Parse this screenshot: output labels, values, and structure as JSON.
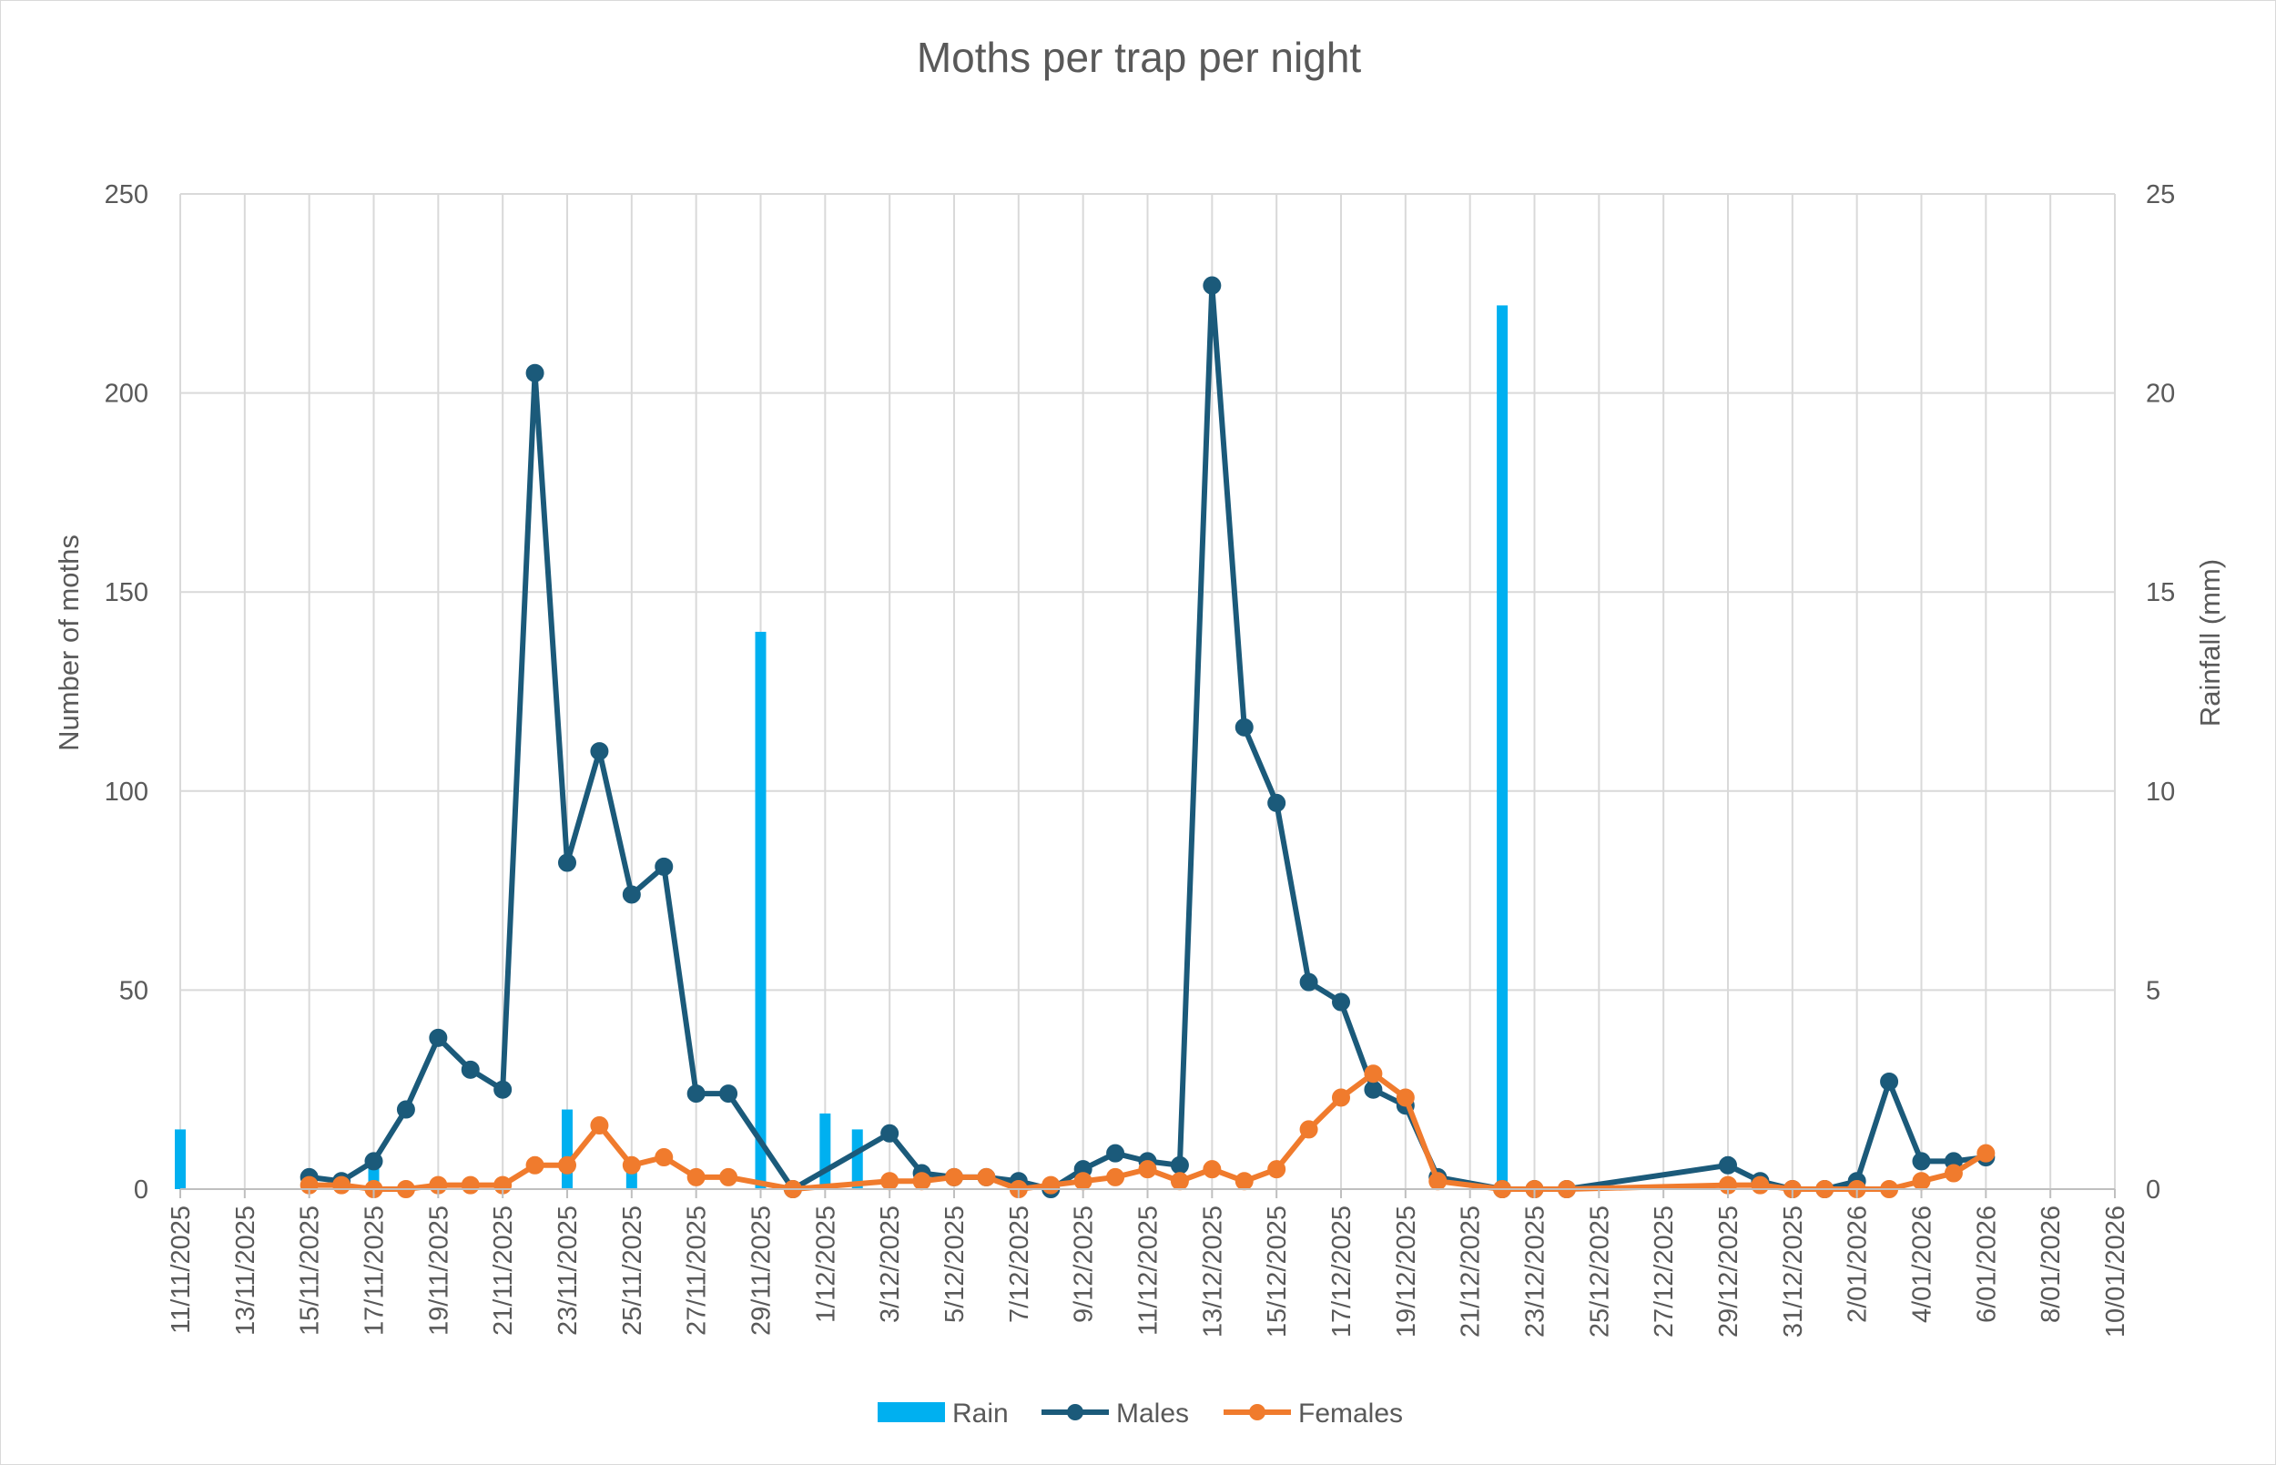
{
  "chart_data": {
    "type": "line",
    "title": "Moths per trap per night",
    "ylabel": "Number of moths",
    "y2label": "Rainfall (mm)",
    "xlabel": "",
    "x_axis": {
      "start": "11/11/2025",
      "end": "10/01/2026",
      "tick_interval_days": 2,
      "tick_labels": [
        "11/11/2025",
        "13/11/2025",
        "15/11/2025",
        "17/11/2025",
        "19/11/2025",
        "21/11/2025",
        "23/11/2025",
        "25/11/2025",
        "27/11/2025",
        "29/11/2025",
        "1/12/2025",
        "3/12/2025",
        "5/12/2025",
        "7/12/2025",
        "9/12/2025",
        "11/12/2025",
        "13/12/2025",
        "15/12/2025",
        "17/12/2025",
        "19/12/2025",
        "21/12/2025",
        "23/12/2025",
        "25/12/2025",
        "27/12/2025",
        "29/12/2025",
        "31/12/2025",
        "2/01/2026",
        "4/01/2026",
        "6/01/2026",
        "8/01/2026",
        "10/01/2026"
      ]
    },
    "ylim": [
      0,
      250
    ],
    "y_ticks": [
      0,
      50,
      100,
      150,
      200,
      250
    ],
    "y2lim": [
      0,
      25
    ],
    "y2_ticks": [
      0,
      5,
      10,
      15,
      20,
      25
    ],
    "grid": true,
    "legend_position": "bottom",
    "series": [
      {
        "name": "Rain",
        "type": "bar",
        "axis": "right",
        "color": "#00b0f0",
        "points": [
          {
            "x": "11/11/2025",
            "y": 1.5
          },
          {
            "x": "17/11/2025",
            "y": 0.6
          },
          {
            "x": "23/11/2025",
            "y": 2.0
          },
          {
            "x": "25/11/2025",
            "y": 0.6
          },
          {
            "x": "29/11/2025",
            "y": 14.0
          },
          {
            "x": "1/12/2025",
            "y": 1.9
          },
          {
            "x": "2/12/2025",
            "y": 1.5
          },
          {
            "x": "22/12/2025",
            "y": 22.2
          }
        ]
      },
      {
        "name": "Males",
        "type": "line",
        "axis": "left",
        "color": "#1b5a7a",
        "points": [
          {
            "x": "15/11/2025",
            "y": 3
          },
          {
            "x": "16/11/2025",
            "y": 2
          },
          {
            "x": "17/11/2025",
            "y": 7
          },
          {
            "x": "18/11/2025",
            "y": 20
          },
          {
            "x": "19/11/2025",
            "y": 38
          },
          {
            "x": "20/11/2025",
            "y": 30
          },
          {
            "x": "21/11/2025",
            "y": 25
          },
          {
            "x": "22/11/2025",
            "y": 205
          },
          {
            "x": "23/11/2025",
            "y": 82
          },
          {
            "x": "24/11/2025",
            "y": 110
          },
          {
            "x": "25/11/2025",
            "y": 74
          },
          {
            "x": "26/11/2025",
            "y": 81
          },
          {
            "x": "27/11/2025",
            "y": 24
          },
          {
            "x": "28/11/2025",
            "y": 24
          },
          {
            "x": "30/11/2025",
            "y": 0
          },
          {
            "x": "3/12/2025",
            "y": 14
          },
          {
            "x": "4/12/2025",
            "y": 4
          },
          {
            "x": "5/12/2025",
            "y": 3
          },
          {
            "x": "6/12/2025",
            "y": 3
          },
          {
            "x": "7/12/2025",
            "y": 2
          },
          {
            "x": "8/12/2025",
            "y": 0
          },
          {
            "x": "9/12/2025",
            "y": 5
          },
          {
            "x": "10/12/2025",
            "y": 9
          },
          {
            "x": "11/12/2025",
            "y": 7
          },
          {
            "x": "12/12/2025",
            "y": 6
          },
          {
            "x": "13/12/2025",
            "y": 227
          },
          {
            "x": "14/12/2025",
            "y": 116
          },
          {
            "x": "15/12/2025",
            "y": 97
          },
          {
            "x": "16/12/2025",
            "y": 52
          },
          {
            "x": "17/12/2025",
            "y": 47
          },
          {
            "x": "18/12/2025",
            "y": 25
          },
          {
            "x": "19/12/2025",
            "y": 21
          },
          {
            "x": "20/12/2025",
            "y": 3
          },
          {
            "x": "22/12/2025",
            "y": 0
          },
          {
            "x": "23/12/2025",
            "y": 0
          },
          {
            "x": "24/12/2025",
            "y": 0
          },
          {
            "x": "29/12/2025",
            "y": 6
          },
          {
            "x": "30/12/2025",
            "y": 2
          },
          {
            "x": "31/12/2025",
            "y": 0
          },
          {
            "x": "1/01/2026",
            "y": 0
          },
          {
            "x": "2/01/2026",
            "y": 2
          },
          {
            "x": "3/01/2026",
            "y": 27
          },
          {
            "x": "4/01/2026",
            "y": 7
          },
          {
            "x": "5/01/2026",
            "y": 7
          },
          {
            "x": "6/01/2026",
            "y": 8
          }
        ]
      },
      {
        "name": "Females",
        "type": "line",
        "axis": "left",
        "color": "#f07b2d",
        "points": [
          {
            "x": "15/11/2025",
            "y": 1
          },
          {
            "x": "16/11/2025",
            "y": 1
          },
          {
            "x": "17/11/2025",
            "y": 0
          },
          {
            "x": "18/11/2025",
            "y": 0
          },
          {
            "x": "19/11/2025",
            "y": 1
          },
          {
            "x": "20/11/2025",
            "y": 1
          },
          {
            "x": "21/11/2025",
            "y": 1
          },
          {
            "x": "22/11/2025",
            "y": 6
          },
          {
            "x": "23/11/2025",
            "y": 6
          },
          {
            "x": "24/11/2025",
            "y": 16
          },
          {
            "x": "25/11/2025",
            "y": 6
          },
          {
            "x": "26/11/2025",
            "y": 8
          },
          {
            "x": "27/11/2025",
            "y": 3
          },
          {
            "x": "28/11/2025",
            "y": 3
          },
          {
            "x": "30/11/2025",
            "y": 0
          },
          {
            "x": "3/12/2025",
            "y": 2
          },
          {
            "x": "4/12/2025",
            "y": 2
          },
          {
            "x": "5/12/2025",
            "y": 3
          },
          {
            "x": "6/12/2025",
            "y": 3
          },
          {
            "x": "7/12/2025",
            "y": 0
          },
          {
            "x": "8/12/2025",
            "y": 1
          },
          {
            "x": "9/12/2025",
            "y": 2
          },
          {
            "x": "10/12/2025",
            "y": 3
          },
          {
            "x": "11/12/2025",
            "y": 5
          },
          {
            "x": "12/12/2025",
            "y": 2
          },
          {
            "x": "13/12/2025",
            "y": 5
          },
          {
            "x": "14/12/2025",
            "y": 2
          },
          {
            "x": "15/12/2025",
            "y": 5
          },
          {
            "x": "16/12/2025",
            "y": 15
          },
          {
            "x": "17/12/2025",
            "y": 23
          },
          {
            "x": "18/12/2025",
            "y": 29
          },
          {
            "x": "19/12/2025",
            "y": 23
          },
          {
            "x": "20/12/2025",
            "y": 2
          },
          {
            "x": "22/12/2025",
            "y": 0
          },
          {
            "x": "23/12/2025",
            "y": 0
          },
          {
            "x": "24/12/2025",
            "y": 0
          },
          {
            "x": "29/12/2025",
            "y": 1
          },
          {
            "x": "30/12/2025",
            "y": 1
          },
          {
            "x": "31/12/2025",
            "y": 0
          },
          {
            "x": "1/01/2026",
            "y": 0
          },
          {
            "x": "2/01/2026",
            "y": 0
          },
          {
            "x": "3/01/2026",
            "y": 0
          },
          {
            "x": "4/01/2026",
            "y": 2
          },
          {
            "x": "5/01/2026",
            "y": 4
          },
          {
            "x": "6/01/2026",
            "y": 9
          }
        ]
      }
    ]
  }
}
